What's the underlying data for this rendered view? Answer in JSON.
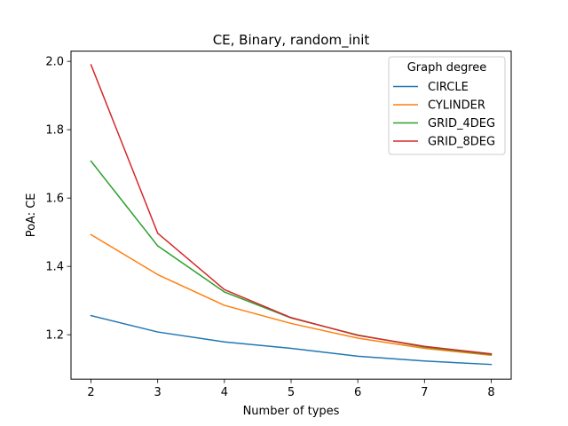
{
  "chart_data": {
    "type": "line",
    "title": "CE, Binary, random_init",
    "xlabel": "Number of types",
    "ylabel": "PoA: CE",
    "x": [
      2,
      3,
      4,
      5,
      6,
      7,
      8
    ],
    "xticks": [
      "2",
      "3",
      "4",
      "5",
      "6",
      "7",
      "8"
    ],
    "yticks": [
      "1.2",
      "1.4",
      "1.6",
      "1.8",
      "2.0"
    ],
    "xlim": [
      1.7,
      8.3
    ],
    "ylim": [
      1.07,
      2.03
    ],
    "grid": false,
    "legend": {
      "title": "Graph degree",
      "placement": "top-right"
    },
    "series": [
      {
        "name": "CIRCLE",
        "color": "#1f77b4",
        "values": [
          1.256,
          1.208,
          1.179,
          1.16,
          1.137,
          1.123,
          1.113
        ]
      },
      {
        "name": "CYLINDER",
        "color": "#ff7f0e",
        "values": [
          1.493,
          1.376,
          1.286,
          1.233,
          1.19,
          1.16,
          1.14
        ]
      },
      {
        "name": "GRID_4DEG",
        "color": "#2ca02c",
        "values": [
          1.708,
          1.46,
          1.325,
          1.249,
          1.199,
          1.164,
          1.142
        ]
      },
      {
        "name": "GRID_8DEG",
        "color": "#d62728",
        "values": [
          1.99,
          1.497,
          1.332,
          1.25,
          1.198,
          1.166,
          1.144
        ]
      }
    ]
  }
}
